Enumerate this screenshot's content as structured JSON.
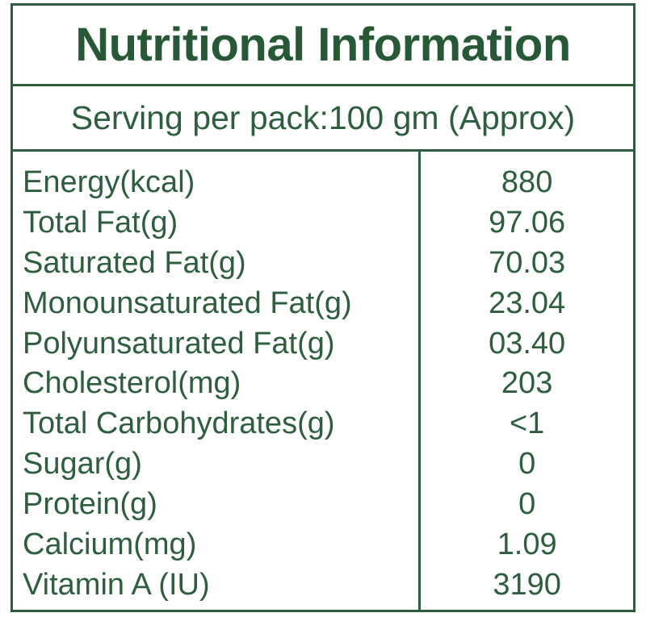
{
  "colors": {
    "text_green": "#2d5e3e",
    "title_green": "#275936",
    "border_green": "#2d5e3e",
    "background": "#ffffff"
  },
  "title": "Nutritional Information",
  "serving_line": "Serving per pack:100 gm (Approx)",
  "table": {
    "rows": [
      {
        "label": "Energy(kcal)",
        "value": "880"
      },
      {
        "label": "Total Fat(g)",
        "value": "97.06"
      },
      {
        "label": "Saturated Fat(g)",
        "value": "70.03"
      },
      {
        "label": "Monounsaturated Fat(g)",
        "value": "23.04"
      },
      {
        "label": "Polyunsaturated Fat(g)",
        "value": "03.40"
      },
      {
        "label": "Cholesterol(mg)",
        "value": "203"
      },
      {
        "label": "Total Carbohydrates(g)",
        "value": "<1"
      },
      {
        "label": "Sugar(g)",
        "value": "0"
      },
      {
        "label": "Protein(g)",
        "value": "0"
      },
      {
        "label": "Calcium(mg)",
        "value": "1.09"
      },
      {
        "label": "Vitamin A (IU)",
        "value": "3190"
      }
    ]
  }
}
